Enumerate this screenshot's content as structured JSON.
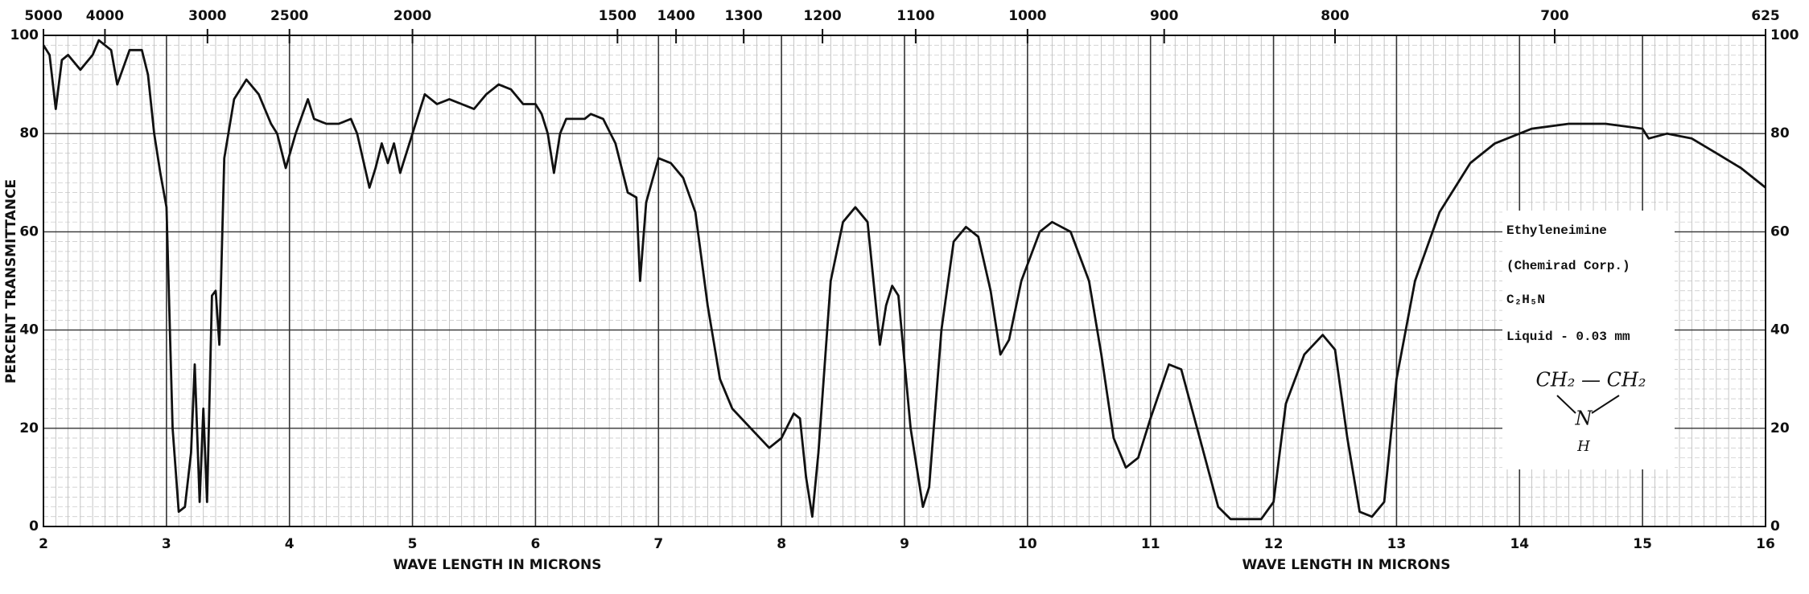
{
  "chart_data": {
    "type": "line",
    "ylabel": "PERCENT TRANSMITTANCE",
    "xlabel": "WAVE LENGTH IN MICRONS",
    "xlim": [
      2,
      16
    ],
    "xticks": [
      2,
      3,
      4,
      5,
      6,
      7,
      8,
      9,
      10,
      11,
      12,
      13,
      14,
      15,
      16
    ],
    "x2ticks": [
      5000,
      4000,
      3000,
      2500,
      2000,
      1500,
      1400,
      1300,
      1200,
      1100,
      1000,
      900,
      800,
      700,
      625
    ],
    "ylim": [
      0,
      100
    ],
    "yticks": [
      0,
      20,
      40,
      60,
      80,
      100
    ],
    "grid": true,
    "x": [
      2.0,
      2.05,
      2.1,
      2.15,
      2.2,
      2.3,
      2.4,
      2.45,
      2.55,
      2.6,
      2.7,
      2.8,
      2.85,
      2.9,
      2.95,
      3.0,
      3.05,
      3.1,
      3.15,
      3.2,
      3.23,
      3.27,
      3.3,
      3.33,
      3.37,
      3.4,
      3.43,
      3.47,
      3.55,
      3.65,
      3.75,
      3.85,
      3.9,
      3.97,
      4.05,
      4.15,
      4.2,
      4.3,
      4.4,
      4.5,
      4.55,
      4.65,
      4.7,
      4.75,
      4.8,
      4.85,
      4.9,
      5.0,
      5.05,
      5.1,
      5.2,
      5.3,
      5.4,
      5.5,
      5.6,
      5.7,
      5.8,
      5.9,
      6.0,
      6.05,
      6.1,
      6.15,
      6.2,
      6.25,
      6.4,
      6.45,
      6.55,
      6.65,
      6.75,
      6.82,
      6.85,
      6.9,
      7.0,
      7.1,
      7.2,
      7.3,
      7.4,
      7.5,
      7.6,
      7.75,
      7.9,
      8.0,
      8.1,
      8.15,
      8.2,
      8.25,
      8.3,
      8.4,
      8.5,
      8.6,
      8.7,
      8.8,
      8.85,
      8.9,
      8.95,
      9.05,
      9.15,
      9.2,
      9.3,
      9.4,
      9.5,
      9.6,
      9.7,
      9.78,
      9.85,
      9.95,
      10.1,
      10.2,
      10.35,
      10.5,
      10.6,
      10.7,
      10.8,
      10.9,
      11.0,
      11.15,
      11.25,
      11.4,
      11.55,
      11.65,
      11.9,
      12.0,
      12.1,
      12.25,
      12.4,
      12.5,
      12.6,
      12.7,
      12.8,
      12.9,
      13.0,
      13.15,
      13.35,
      13.6,
      13.8,
      14.1,
      14.4,
      14.7,
      15.0,
      15.05,
      15.2,
      15.4,
      15.6,
      15.8,
      16.0
    ],
    "series": [
      {
        "color": "#111111",
        "values": [
          98,
          96,
          85,
          95,
          96,
          93,
          96,
          99,
          97,
          90,
          97,
          97,
          92,
          80,
          72,
          65,
          20,
          3,
          4,
          15,
          33,
          5,
          24,
          5,
          47,
          48,
          37,
          75,
          87,
          91,
          88,
          82,
          80,
          73,
          80,
          87,
          83,
          82,
          82,
          83,
          80,
          69,
          73,
          78,
          74,
          78,
          72,
          80,
          84,
          88,
          86,
          87,
          86,
          85,
          88,
          90,
          89,
          86,
          86,
          84,
          80,
          72,
          80,
          83,
          83,
          84,
          83,
          78,
          68,
          67,
          50,
          66,
          75,
          74,
          71,
          64,
          45,
          30,
          24,
          20,
          16,
          18,
          23,
          22,
          10,
          2,
          15,
          50,
          62,
          65,
          62,
          37,
          45,
          49,
          47,
          20,
          4,
          8,
          40,
          58,
          61,
          59,
          48,
          35,
          38,
          50,
          60,
          62,
          60,
          50,
          35,
          18,
          12,
          14,
          22,
          33,
          32,
          18,
          4,
          1.5,
          1.5,
          5,
          25,
          35,
          39,
          36,
          18,
          3,
          2,
          5,
          30,
          50,
          64,
          74,
          78,
          81,
          82,
          82,
          81,
          79,
          80,
          79,
          76,
          73,
          69
        ]
      }
    ],
    "annotations": [
      "Ethyleneimine",
      "(Chemirad Corp.)",
      "C₂H₅N",
      "Liquid - 0.03 mm"
    ],
    "structure": [
      "CH₂ — CH₂",
      "N",
      "H"
    ]
  }
}
